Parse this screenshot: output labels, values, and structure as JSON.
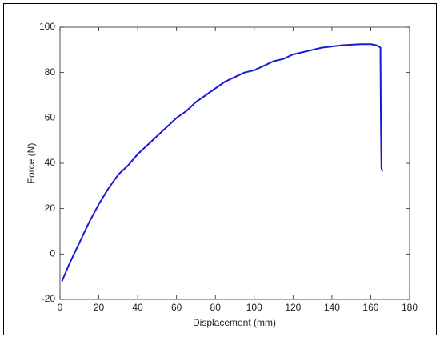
{
  "chart_data": {
    "type": "line",
    "xlabel": "Displacement (mm)",
    "ylabel": "Force (N)",
    "x": [
      1,
      5,
      10,
      15,
      20,
      25,
      30,
      35,
      40,
      45,
      50,
      55,
      60,
      65,
      70,
      75,
      80,
      85,
      90,
      95,
      100,
      105,
      110,
      115,
      120,
      125,
      130,
      135,
      140,
      145,
      150,
      155,
      160,
      163,
      165,
      165.2,
      165.5,
      166
    ],
    "series": [
      {
        "color": "#1a1ad6",
        "values": [
          -12,
          -4,
          5,
          14,
          22,
          29,
          35,
          39,
          44,
          48,
          52,
          56,
          60,
          63,
          67,
          70,
          73,
          76,
          78,
          80,
          81,
          83,
          85,
          86,
          88,
          89,
          90,
          91,
          91.5,
          92,
          92.3,
          92.5,
          92.5,
          92,
          91,
          60,
          38,
          36.5
        ]
      }
    ],
    "xlim": [
      0,
      180
    ],
    "xticks": [
      0,
      20,
      40,
      60,
      80,
      100,
      120,
      140,
      160,
      180
    ],
    "ylim": [
      -20,
      100
    ],
    "yticks": [
      -20,
      0,
      20,
      40,
      60,
      80,
      100
    ]
  }
}
